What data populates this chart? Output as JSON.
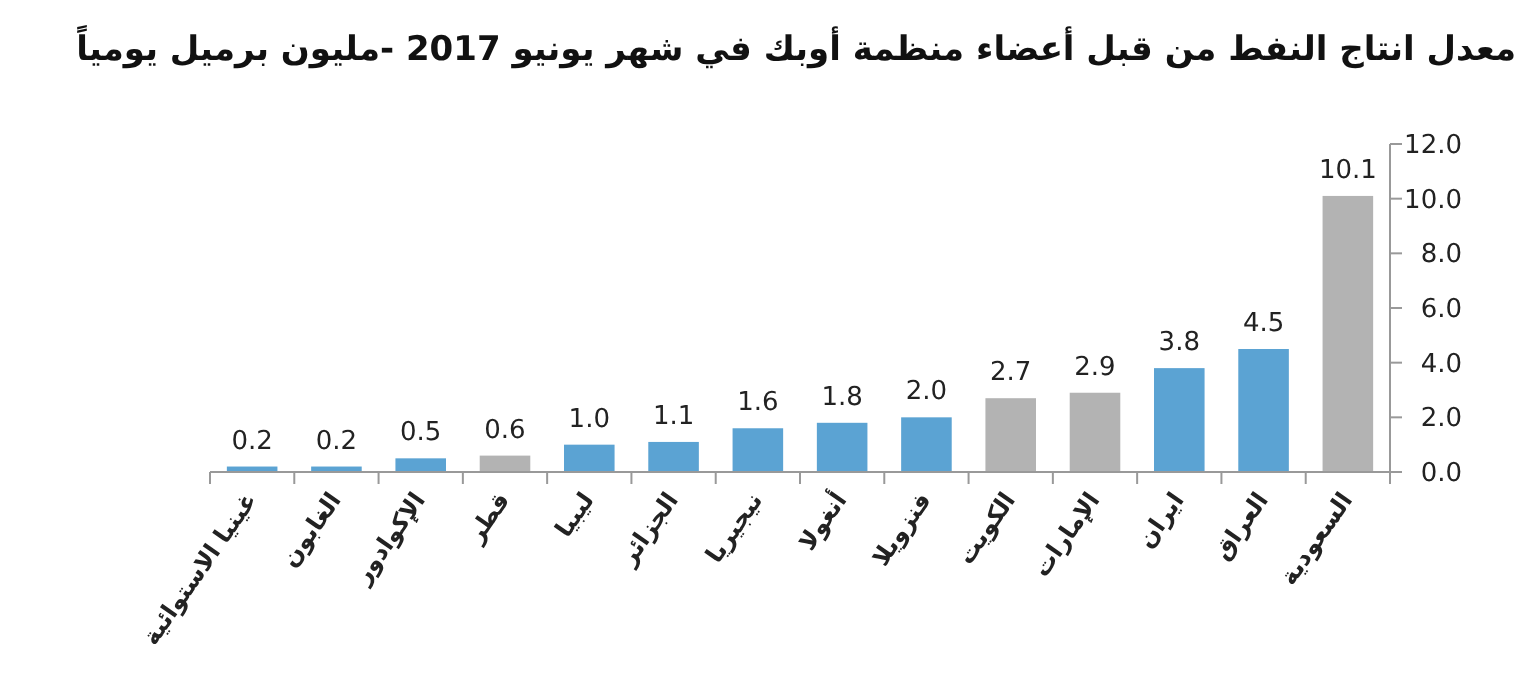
{
  "chart_data": {
    "type": "bar",
    "title": "معدل انتاج النفط من قبل أعضاء منظمة أوبك في شهر يونيو 2017 -مليون برميل يومياً",
    "categories": [
      "غينيا الاستوائية",
      "الغابون",
      "الإكوادور",
      "قطر",
      "ليبيا",
      "الجزائر",
      "نيجيريا",
      "أنغولا",
      "فنزويلا",
      "الكويت",
      "الإمارات",
      "ايران",
      "العراق",
      "السعودية"
    ],
    "values": [
      0.2,
      0.2,
      0.5,
      0.6,
      1.0,
      1.1,
      1.6,
      1.8,
      2.0,
      2.7,
      2.9,
      3.8,
      4.5,
      10.1
    ],
    "colors": [
      "#5ba3d3",
      "#5ba3d3",
      "#5ba3d3",
      "#b3b3b3",
      "#5ba3d3",
      "#5ba3d3",
      "#5ba3d3",
      "#5ba3d3",
      "#5ba3d3",
      "#b3b3b3",
      "#b3b3b3",
      "#5ba3d3",
      "#5ba3d3",
      "#b3b3b3"
    ],
    "value_labels": [
      "0.2",
      "0.2",
      "0.5",
      "0.6",
      "1.0",
      "1.1",
      "1.6",
      "1.8",
      "2.0",
      "2.7",
      "2.9",
      "3.8",
      "4.5",
      "10.1"
    ],
    "ylim": [
      0,
      12
    ],
    "yticks": [
      {
        "value": 0,
        "label": "0.0"
      },
      {
        "value": 2,
        "label": "2.0"
      },
      {
        "value": 4,
        "label": "4.0"
      },
      {
        "value": 6,
        "label": "6.0"
      },
      {
        "value": 8,
        "label": "8.0"
      },
      {
        "value": 10,
        "label": "10.0"
      },
      {
        "value": 12,
        "label": "12.0"
      }
    ],
    "grid": false
  }
}
